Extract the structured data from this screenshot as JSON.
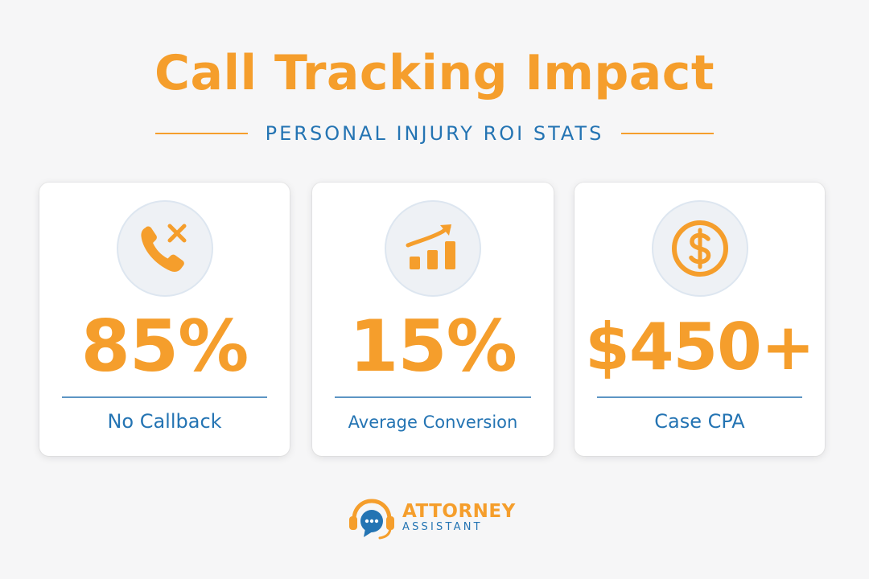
{
  "title": "Call Tracking Impact",
  "subtitle": "PERSONAL INJURY ROI STATS",
  "colors": {
    "accent": "#f59e2c",
    "blue": "#2474b3",
    "background": "#f6f6f7"
  },
  "stats": [
    {
      "icon": "phone-missed-icon",
      "value": "85%",
      "label": "No Callback"
    },
    {
      "icon": "chart-growth-icon",
      "value": "15%",
      "label": "Average Conversion"
    },
    {
      "icon": "dollar-coin-icon",
      "value": "$450+",
      "label": "Case CPA"
    }
  ],
  "logo": {
    "line1": "ATTORNEY",
    "line2": "ASSISTANT",
    "icon": "headset-chat-icon"
  }
}
